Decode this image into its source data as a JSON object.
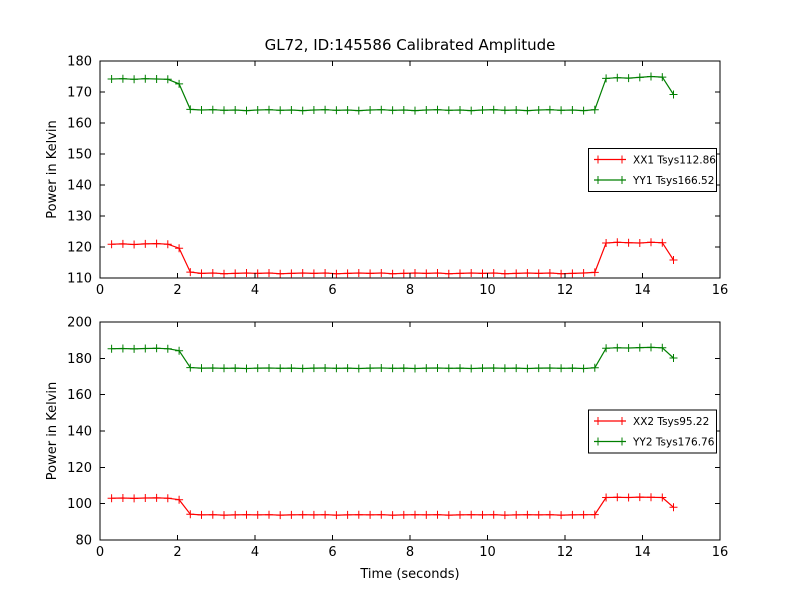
{
  "figure_title": "GL72, ID:145586 Calibrated Amplitude",
  "style": {
    "background": "#ffffff",
    "frame_color": "#000000",
    "xx_color": "#ff0000",
    "yy_color": "#007f00"
  },
  "chart_data": [
    {
      "type": "line",
      "xlabel": "",
      "ylabel": "Power in Kelvin",
      "xlim": [
        0,
        16
      ],
      "ylim": [
        110,
        180
      ],
      "xticks": [
        0,
        2,
        4,
        6,
        8,
        10,
        12,
        14,
        16
      ],
      "yticks": [
        110,
        120,
        130,
        140,
        150,
        160,
        170,
        180
      ],
      "grid": false,
      "legend_position": "center-right",
      "x": [
        0.3,
        0.59,
        0.88,
        1.17,
        1.46,
        1.75,
        2.04,
        2.33,
        2.62,
        2.91,
        3.2,
        3.49,
        3.78,
        4.07,
        4.36,
        4.65,
        4.94,
        5.23,
        5.52,
        5.81,
        6.1,
        6.39,
        6.68,
        6.97,
        7.26,
        7.55,
        7.84,
        8.13,
        8.42,
        8.71,
        9.0,
        9.29,
        9.58,
        9.87,
        10.16,
        10.45,
        10.74,
        11.03,
        11.32,
        11.61,
        11.9,
        12.19,
        12.48,
        12.77,
        13.06,
        13.35,
        13.64,
        13.93,
        14.22,
        14.51,
        14.8
      ],
      "series": [
        {
          "name": "XX1",
          "label": "XX1 Tsys112.86",
          "color": "#ff0000",
          "marker": "+",
          "values": [
            120.9,
            121.0,
            120.8,
            121.0,
            121.1,
            120.9,
            119.6,
            111.9,
            111.5,
            111.6,
            111.4,
            111.5,
            111.6,
            111.5,
            111.6,
            111.4,
            111.5,
            111.6,
            111.5,
            111.6,
            111.4,
            111.5,
            111.6,
            111.5,
            111.6,
            111.4,
            111.5,
            111.6,
            111.5,
            111.6,
            111.4,
            111.5,
            111.6,
            111.5,
            111.6,
            111.4,
            111.5,
            111.6,
            111.5,
            111.6,
            111.4,
            111.5,
            111.6,
            111.8,
            121.3,
            121.5,
            121.4,
            121.3,
            121.5,
            121.4,
            115.8
          ]
        },
        {
          "name": "YY1",
          "label": "YY1 Tsys166.52",
          "color": "#007f00",
          "marker": "+",
          "values": [
            174.2,
            174.3,
            174.1,
            174.3,
            174.2,
            174.1,
            172.6,
            164.4,
            164.2,
            164.3,
            164.1,
            164.2,
            164.0,
            164.2,
            164.3,
            164.1,
            164.2,
            164.0,
            164.2,
            164.3,
            164.1,
            164.2,
            164.0,
            164.2,
            164.3,
            164.1,
            164.2,
            164.0,
            164.2,
            164.3,
            164.1,
            164.2,
            164.0,
            164.2,
            164.3,
            164.1,
            164.2,
            164.0,
            164.2,
            164.3,
            164.1,
            164.2,
            164.0,
            164.3,
            174.4,
            174.6,
            174.5,
            174.7,
            175.0,
            174.8,
            169.2
          ]
        }
      ]
    },
    {
      "type": "line",
      "xlabel": "Time (seconds)",
      "ylabel": "Power in Kelvin",
      "xlim": [
        0,
        16
      ],
      "ylim": [
        80,
        200
      ],
      "xticks": [
        0,
        2,
        4,
        6,
        8,
        10,
        12,
        14,
        16
      ],
      "yticks": [
        80,
        100,
        120,
        140,
        160,
        180,
        200
      ],
      "grid": false,
      "legend_position": "center-right",
      "x": [
        0.3,
        0.59,
        0.88,
        1.17,
        1.46,
        1.75,
        2.04,
        2.33,
        2.62,
        2.91,
        3.2,
        3.49,
        3.78,
        4.07,
        4.36,
        4.65,
        4.94,
        5.23,
        5.52,
        5.81,
        6.1,
        6.39,
        6.68,
        6.97,
        7.26,
        7.55,
        7.84,
        8.13,
        8.42,
        8.71,
        9.0,
        9.29,
        9.58,
        9.87,
        10.16,
        10.45,
        10.74,
        11.03,
        11.32,
        11.61,
        11.9,
        12.19,
        12.48,
        12.77,
        13.06,
        13.35,
        13.64,
        13.93,
        14.22,
        14.51,
        14.8
      ],
      "series": [
        {
          "name": "XX2",
          "label": "XX2 Tsys95.22",
          "color": "#ff0000",
          "marker": "+",
          "values": [
            103.0,
            103.1,
            102.9,
            103.1,
            103.2,
            103.0,
            102.2,
            94.2,
            93.8,
            93.9,
            93.7,
            93.8,
            93.9,
            93.8,
            93.9,
            93.7,
            93.8,
            93.9,
            93.8,
            93.9,
            93.7,
            93.8,
            93.9,
            93.8,
            93.9,
            93.7,
            93.8,
            93.9,
            93.8,
            93.9,
            93.7,
            93.8,
            93.9,
            93.8,
            93.9,
            93.7,
            93.8,
            93.9,
            93.8,
            93.9,
            93.7,
            93.8,
            93.9,
            94.0,
            103.4,
            103.5,
            103.4,
            103.6,
            103.5,
            103.4,
            98.0
          ]
        },
        {
          "name": "YY2",
          "label": "YY2 Tsys176.76",
          "color": "#007f00",
          "marker": "+",
          "values": [
            185.3,
            185.4,
            185.2,
            185.4,
            185.5,
            185.3,
            184.2,
            174.9,
            174.6,
            174.7,
            174.5,
            174.6,
            174.4,
            174.6,
            174.7,
            174.5,
            174.6,
            174.4,
            174.6,
            174.7,
            174.5,
            174.6,
            174.4,
            174.6,
            174.7,
            174.5,
            174.6,
            174.4,
            174.6,
            174.7,
            174.5,
            174.6,
            174.4,
            174.6,
            174.7,
            174.5,
            174.6,
            174.4,
            174.6,
            174.7,
            174.5,
            174.6,
            174.4,
            174.8,
            185.6,
            185.8,
            185.7,
            185.9,
            186.0,
            185.8,
            180.2
          ]
        }
      ]
    }
  ]
}
